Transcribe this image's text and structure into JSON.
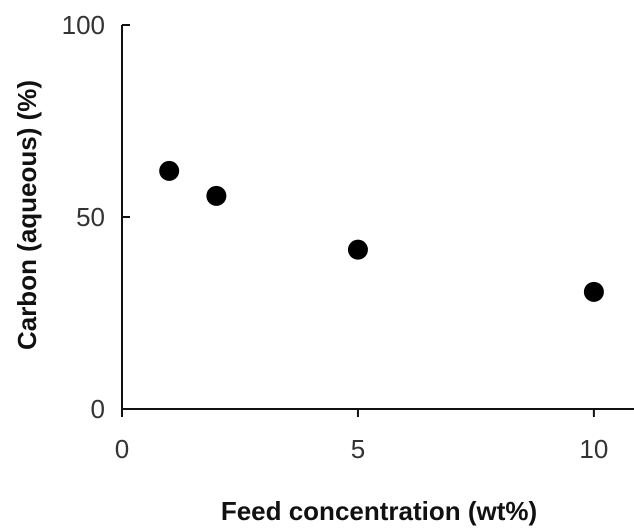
{
  "chart_data": {
    "type": "scatter",
    "title": "",
    "xlabel": "Feed concentration (wt%)",
    "ylabel": "Carbon (aqueous) (%)",
    "xlim": [
      0,
      10.85
    ],
    "ylim": [
      0,
      100
    ],
    "x_ticks": [
      0,
      5,
      10
    ],
    "y_ticks": [
      0,
      50,
      100
    ],
    "x_tick_labels": [
      "0",
      "5",
      "10"
    ],
    "y_tick_labels": [
      "0",
      "50",
      "100"
    ],
    "grid": false,
    "legend": "none",
    "marker_color": "#000000",
    "series": [
      {
        "x": [
          1,
          2,
          5,
          10
        ],
        "y": [
          62,
          55.5,
          41.5,
          30.5
        ]
      }
    ]
  }
}
